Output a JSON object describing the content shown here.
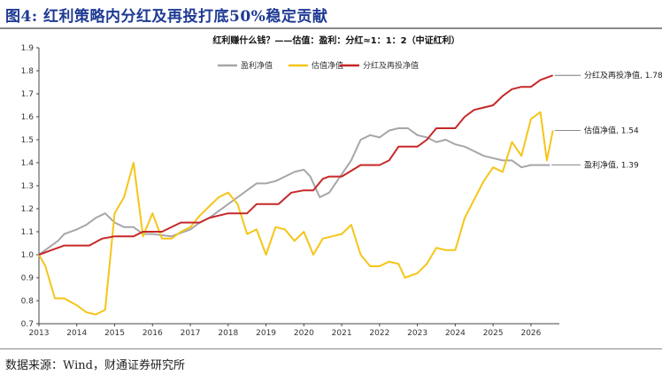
{
  "figure": {
    "title": "图4: 红利策略内分红及再投打底50%稳定贡献",
    "source": "数据来源：Wind，财通证券研究所"
  },
  "chart_data": {
    "type": "line",
    "title": "红利赚什么钱？——估值：盈利：分红≈1：1：2（中证红利）",
    "xlabel": "",
    "ylabel": "",
    "x_ticks": [
      "2013",
      "2014",
      "2015",
      "2016",
      "2017",
      "2018",
      "2019",
      "2020",
      "2021",
      "2022",
      "2023",
      "2024",
      "2025",
      "2026"
    ],
    "y_ticks": [
      "0.7",
      "0.8",
      "0.9",
      "1.0",
      "1.1",
      "1.2",
      "1.3",
      "1.4",
      "1.5",
      "1.6",
      "1.7",
      "1.8",
      "1.9"
    ],
    "xlim": [
      2013.0,
      2026.75
    ],
    "ylim": [
      0.7,
      1.9
    ],
    "grid": false,
    "legend_position": "top-left",
    "series": [
      {
        "name": "盈利净值",
        "color": "#a6a6ab",
        "end_label": "盈利净值, 1.39",
        "points": [
          [
            2013.0,
            1.0
          ],
          [
            2013.25,
            1.03
          ],
          [
            2013.5,
            1.06
          ],
          [
            2013.67,
            1.09
          ],
          [
            2014.0,
            1.11
          ],
          [
            2014.25,
            1.13
          ],
          [
            2014.5,
            1.16
          ],
          [
            2014.75,
            1.18
          ],
          [
            2015.0,
            1.14
          ],
          [
            2015.25,
            1.12
          ],
          [
            2015.5,
            1.12
          ],
          [
            2015.75,
            1.09
          ],
          [
            2016.0,
            1.09
          ],
          [
            2016.5,
            1.08
          ],
          [
            2017.0,
            1.11
          ],
          [
            2017.25,
            1.14
          ],
          [
            2017.5,
            1.16
          ],
          [
            2017.75,
            1.19
          ],
          [
            2018.0,
            1.22
          ],
          [
            2018.25,
            1.25
          ],
          [
            2018.5,
            1.28
          ],
          [
            2018.75,
            1.31
          ],
          [
            2019.0,
            1.31
          ],
          [
            2019.25,
            1.32
          ],
          [
            2019.5,
            1.34
          ],
          [
            2019.75,
            1.36
          ],
          [
            2020.0,
            1.37
          ],
          [
            2020.17,
            1.34
          ],
          [
            2020.42,
            1.25
          ],
          [
            2020.67,
            1.27
          ],
          [
            2021.0,
            1.35
          ],
          [
            2021.25,
            1.41
          ],
          [
            2021.5,
            1.5
          ],
          [
            2021.75,
            1.52
          ],
          [
            2022.0,
            1.51
          ],
          [
            2022.25,
            1.54
          ],
          [
            2022.5,
            1.55
          ],
          [
            2022.75,
            1.55
          ],
          [
            2023.0,
            1.52
          ],
          [
            2023.25,
            1.51
          ],
          [
            2023.5,
            1.49
          ],
          [
            2023.75,
            1.5
          ],
          [
            2024.0,
            1.48
          ],
          [
            2024.25,
            1.47
          ],
          [
            2024.5,
            1.45
          ],
          [
            2024.75,
            1.43
          ],
          [
            2025.0,
            1.42
          ],
          [
            2025.25,
            1.41
          ],
          [
            2025.5,
            1.41
          ],
          [
            2025.75,
            1.38
          ],
          [
            2026.0,
            1.39
          ],
          [
            2026.5,
            1.39
          ]
        ]
      },
      {
        "name": "估值净值",
        "color": "#f5c518",
        "end_label": "估值净值, 1.54",
        "points": [
          [
            2013.0,
            1.0
          ],
          [
            2013.17,
            0.95
          ],
          [
            2013.42,
            0.81
          ],
          [
            2013.67,
            0.81
          ],
          [
            2014.0,
            0.78
          ],
          [
            2014.25,
            0.75
          ],
          [
            2014.5,
            0.74
          ],
          [
            2014.75,
            0.76
          ],
          [
            2015.0,
            1.18
          ],
          [
            2015.25,
            1.25
          ],
          [
            2015.5,
            1.4
          ],
          [
            2015.75,
            1.08
          ],
          [
            2016.0,
            1.18
          ],
          [
            2016.25,
            1.07
          ],
          [
            2016.5,
            1.07
          ],
          [
            2016.75,
            1.1
          ],
          [
            2017.0,
            1.12
          ],
          [
            2017.25,
            1.17
          ],
          [
            2017.5,
            1.21
          ],
          [
            2017.75,
            1.25
          ],
          [
            2018.0,
            1.27
          ],
          [
            2018.25,
            1.22
          ],
          [
            2018.5,
            1.09
          ],
          [
            2018.75,
            1.11
          ],
          [
            2019.0,
            1.0
          ],
          [
            2019.25,
            1.12
          ],
          [
            2019.5,
            1.11
          ],
          [
            2019.75,
            1.06
          ],
          [
            2020.0,
            1.1
          ],
          [
            2020.25,
            1.0
          ],
          [
            2020.5,
            1.07
          ],
          [
            2020.75,
            1.08
          ],
          [
            2021.0,
            1.09
          ],
          [
            2021.25,
            1.13
          ],
          [
            2021.5,
            1.0
          ],
          [
            2021.75,
            0.95
          ],
          [
            2022.0,
            0.95
          ],
          [
            2022.25,
            0.97
          ],
          [
            2022.5,
            0.96
          ],
          [
            2022.67,
            0.9
          ],
          [
            2023.0,
            0.92
          ],
          [
            2023.25,
            0.96
          ],
          [
            2023.5,
            1.03
          ],
          [
            2023.75,
            1.02
          ],
          [
            2024.0,
            1.02
          ],
          [
            2024.25,
            1.16
          ],
          [
            2024.5,
            1.24
          ],
          [
            2024.75,
            1.32
          ],
          [
            2025.0,
            1.38
          ],
          [
            2025.25,
            1.36
          ],
          [
            2025.5,
            1.49
          ],
          [
            2025.75,
            1.43
          ],
          [
            2026.0,
            1.59
          ],
          [
            2026.25,
            1.62
          ],
          [
            2026.42,
            1.41
          ],
          [
            2026.58,
            1.54
          ]
        ]
      },
      {
        "name": "分红及再投净值",
        "color": "#c62828",
        "end_label": "分红及再投净值, 1.78",
        "points": [
          [
            2013.0,
            1.0
          ],
          [
            2013.33,
            1.02
          ],
          [
            2013.67,
            1.04
          ],
          [
            2014.0,
            1.04
          ],
          [
            2014.33,
            1.04
          ],
          [
            2014.67,
            1.07
          ],
          [
            2015.0,
            1.08
          ],
          [
            2015.5,
            1.08
          ],
          [
            2015.75,
            1.1
          ],
          [
            2016.0,
            1.1
          ],
          [
            2016.25,
            1.1
          ],
          [
            2016.75,
            1.14
          ],
          [
            2017.25,
            1.14
          ],
          [
            2017.5,
            1.16
          ],
          [
            2018.0,
            1.18
          ],
          [
            2018.5,
            1.18
          ],
          [
            2018.75,
            1.22
          ],
          [
            2019.0,
            1.22
          ],
          [
            2019.33,
            1.22
          ],
          [
            2019.67,
            1.27
          ],
          [
            2020.0,
            1.28
          ],
          [
            2020.25,
            1.28
          ],
          [
            2020.5,
            1.33
          ],
          [
            2020.67,
            1.34
          ],
          [
            2021.0,
            1.34
          ],
          [
            2021.5,
            1.39
          ],
          [
            2022.0,
            1.39
          ],
          [
            2022.25,
            1.41
          ],
          [
            2022.5,
            1.47
          ],
          [
            2023.0,
            1.47
          ],
          [
            2023.25,
            1.5
          ],
          [
            2023.5,
            1.55
          ],
          [
            2024.0,
            1.55
          ],
          [
            2024.25,
            1.6
          ],
          [
            2024.5,
            1.63
          ],
          [
            2024.75,
            1.64
          ],
          [
            2025.0,
            1.65
          ],
          [
            2025.25,
            1.69
          ],
          [
            2025.5,
            1.72
          ],
          [
            2025.75,
            1.73
          ],
          [
            2026.0,
            1.73
          ],
          [
            2026.25,
            1.76
          ],
          [
            2026.58,
            1.78
          ]
        ]
      }
    ]
  }
}
